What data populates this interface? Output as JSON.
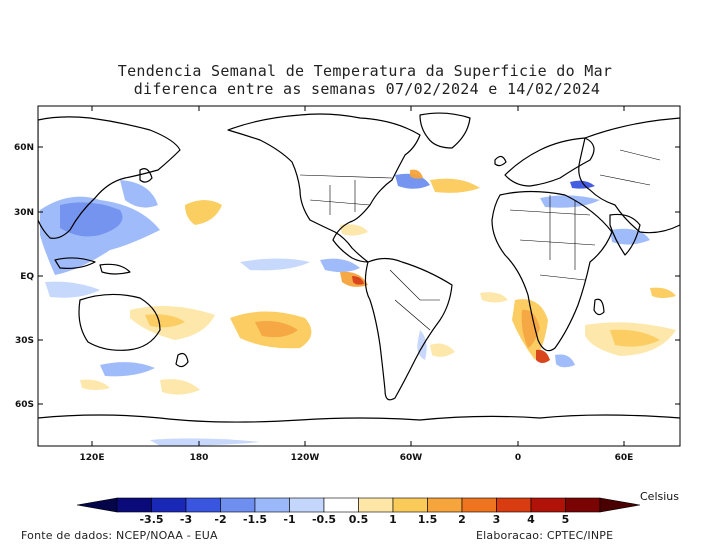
{
  "title": {
    "line1": "Tendencia Semanal de Temperatura da Superficie do Mar",
    "line2": "diferenca entre as semanas 07/02/2024 e 14/02/2024"
  },
  "map": {
    "lat_labels": [
      "60N",
      "30N",
      "EQ",
      "30S",
      "60S"
    ],
    "lon_labels": [
      "120E",
      "180",
      "120W",
      "60W",
      "0",
      "60E"
    ]
  },
  "legend": {
    "unit": "Celsius",
    "ticks": [
      "-3.5",
      "-3",
      "-2",
      "-1.5",
      "-1",
      "-0.5",
      "0.5",
      "1",
      "1.5",
      "2",
      "3",
      "4",
      "5"
    ],
    "colors": [
      "#0a0a7a",
      "#1a28b8",
      "#3a55e0",
      "#6e8ff0",
      "#9bb8fa",
      "#c4d6fc",
      "#ffffff",
      "#fde6a6",
      "#fbcb5a",
      "#f6a43c",
      "#ee7420",
      "#d83c10",
      "#b01208",
      "#7a0404"
    ],
    "arrow_left_color": "#05054a",
    "arrow_right_color": "#4a0000"
  },
  "footer": {
    "source": "Fonte de dados: NCEP/NOAA - EUA",
    "credit": "Elaboracao: CPTEC/INPE"
  }
}
